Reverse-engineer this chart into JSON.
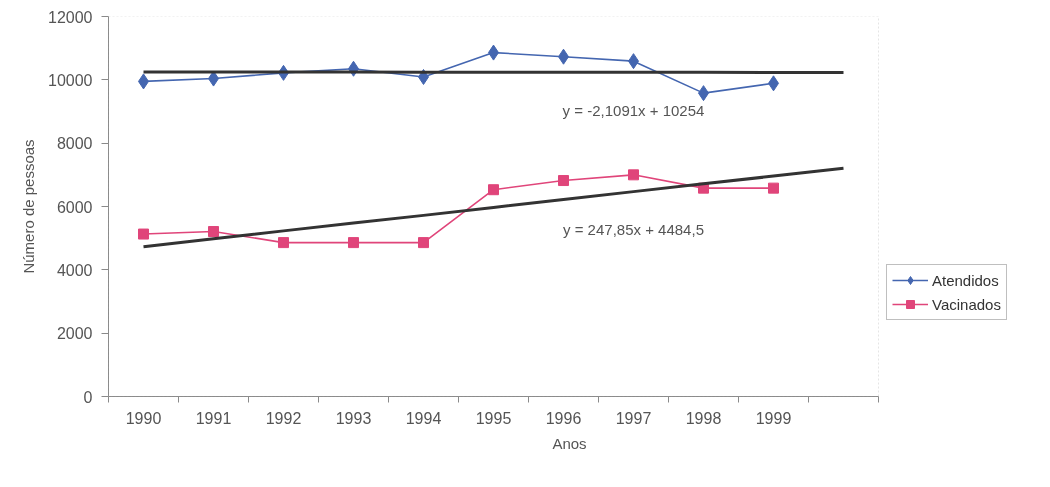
{
  "chart_data": {
    "type": "line",
    "xlabel": "Anos",
    "ylabel": "Número de pessoas",
    "categories": [
      "1990",
      "1991",
      "1992",
      "1993",
      "1994",
      "1995",
      "1996",
      "1997",
      "1998",
      "1999",
      null
    ],
    "ylim": [
      0,
      12000
    ],
    "yticks": [
      0,
      2000,
      4000,
      6000,
      8000,
      10000,
      12000
    ],
    "legend": "right",
    "line_style": "solid",
    "series": [
      {
        "name": "Atendidos",
        "color": "#4466b0",
        "marker": "diamond",
        "values": [
          9950,
          10040,
          10220,
          10350,
          10090,
          10860,
          10730,
          10590,
          9580,
          9890,
          null
        ]
      },
      {
        "name": "Vacinados",
        "color": "#e0457a",
        "marker": "square",
        "values": [
          5130,
          5210,
          4860,
          4860,
          4860,
          6530,
          6820,
          7000,
          6580,
          6580,
          null
        ]
      },
      {
        "color": "#333333",
        "marker": "none",
        "values": [
          10250,
          10250,
          10250,
          10250,
          10240,
          10240,
          10240,
          10240,
          10240,
          10230,
          10230
        ]
      },
      {
        "color": "#333333",
        "marker": "none",
        "values": [
          4730,
          4980,
          5230,
          5480,
          5720,
          5970,
          6220,
          6470,
          6720,
          6960,
          7210
        ]
      }
    ],
    "annotations": [
      "y = -2,1091x + 10254",
      "y = 247,85x + 4484,5"
    ]
  }
}
